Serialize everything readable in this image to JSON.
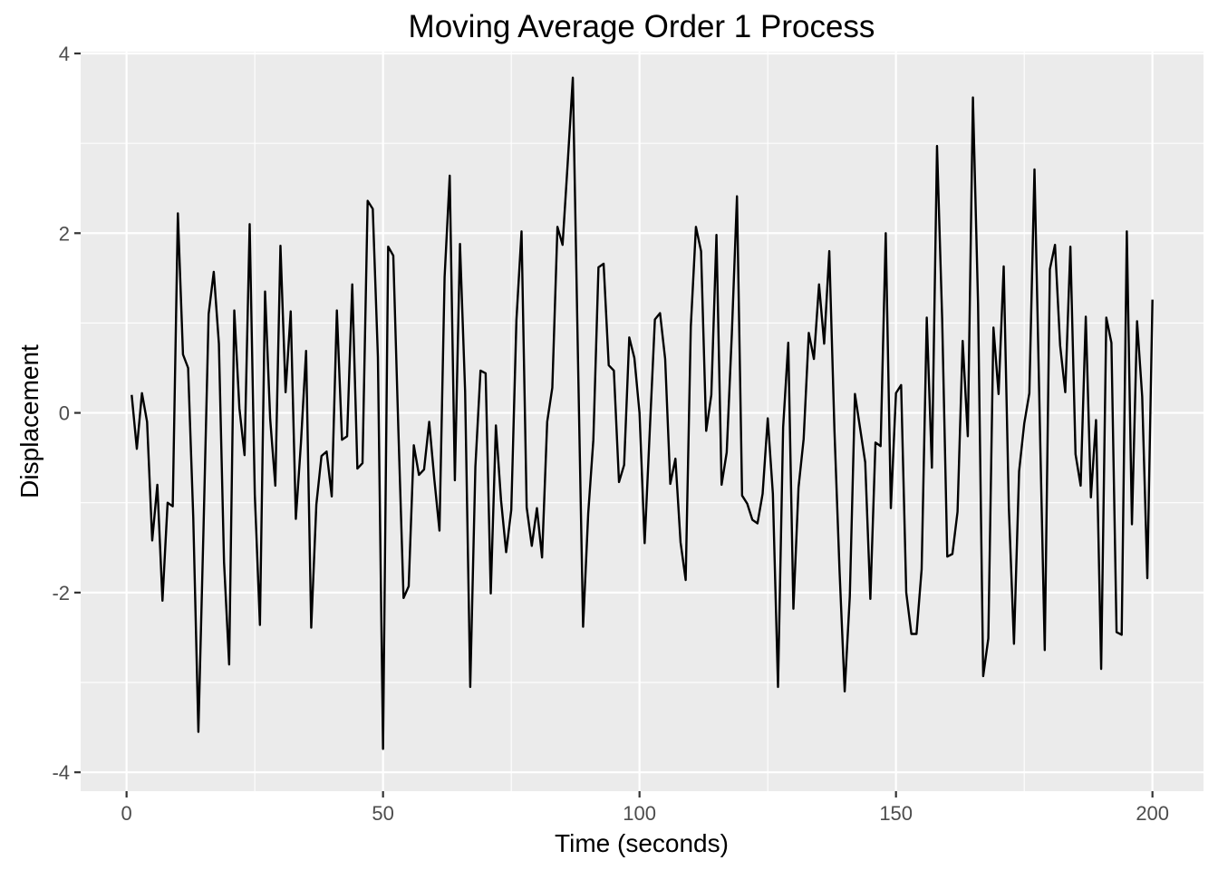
{
  "chart_data": {
    "type": "line",
    "title": "Moving Average Order 1 Process",
    "xlabel": "Time (seconds)",
    "ylabel": "Displacement",
    "xlim": [
      -8.95,
      209.95
    ],
    "ylim": [
      -4.21,
      4.02
    ],
    "x_ticks": [
      0,
      50,
      100,
      150,
      200
    ],
    "x_tick_labels": [
      "0",
      "50",
      "100",
      "150",
      "200"
    ],
    "y_ticks": [
      -4,
      -2,
      0,
      2,
      4
    ],
    "y_tick_labels": [
      "-4",
      "-2",
      "0",
      "2",
      "4"
    ],
    "grid": true,
    "panel_background": "#EBEBEB",
    "grid_color": "#FFFFFF",
    "line_color": "#000000",
    "series": [
      {
        "x": [
          1,
          2,
          3,
          4,
          5,
          6,
          7,
          8,
          9,
          10,
          11,
          12,
          13,
          14,
          15,
          16,
          17,
          18,
          19,
          20,
          21,
          22,
          23,
          24,
          25,
          26,
          27,
          28,
          29,
          30,
          31,
          32,
          33,
          34,
          35,
          36,
          37,
          38,
          39,
          40,
          41,
          42,
          43,
          44,
          45,
          46,
          47,
          48,
          49,
          50,
          51,
          52,
          53,
          54,
          55,
          56,
          57,
          58,
          59,
          60,
          61,
          62,
          63,
          64,
          65,
          66,
          67,
          68,
          69,
          70,
          71,
          72,
          73,
          74,
          75,
          76,
          77,
          78,
          79,
          80,
          81,
          82,
          83,
          84,
          85,
          86,
          87,
          88,
          89,
          90,
          91,
          92,
          93,
          94,
          95,
          96,
          97,
          98,
          99,
          100,
          101,
          102,
          103,
          104,
          105,
          106,
          107,
          108,
          109,
          110,
          111,
          112,
          113,
          114,
          115,
          116,
          117,
          118,
          119,
          120,
          121,
          122,
          123,
          124,
          125,
          126,
          127,
          128,
          129,
          130,
          131,
          132,
          133,
          134,
          135,
          136,
          137,
          138,
          139,
          140,
          141,
          142,
          143,
          144,
          145,
          146,
          147,
          148,
          149,
          150,
          151,
          152,
          153,
          154,
          155,
          156,
          157,
          158,
          159,
          160,
          161,
          162,
          163,
          164,
          165,
          166,
          167,
          168,
          169,
          170,
          171,
          172,
          173,
          174,
          175,
          176,
          177,
          178,
          179,
          180,
          181,
          182,
          183,
          184,
          185,
          186,
          187,
          188,
          189,
          190,
          191,
          192,
          193,
          194,
          195,
          196,
          197,
          198,
          199,
          200
        ],
        "values": [
          0.2,
          -0.4,
          0.22,
          -0.1,
          -1.42,
          -0.8,
          -2.09,
          -1.0,
          -1.04,
          2.22,
          0.65,
          0.5,
          -1.16,
          -3.55,
          -1.29,
          1.1,
          1.57,
          0.77,
          -1.66,
          -2.8,
          1.14,
          0.05,
          -0.47,
          2.1,
          -0.91,
          -2.36,
          1.35,
          -0.07,
          -0.81,
          1.86,
          0.23,
          1.13,
          -1.18,
          -0.33,
          0.69,
          -2.39,
          -1.02,
          -0.48,
          -0.43,
          -0.93,
          1.14,
          -0.3,
          -0.26,
          1.43,
          -0.62,
          -0.56,
          2.36,
          2.27,
          0.62,
          -3.74,
          1.85,
          1.75,
          -0.21,
          -2.06,
          -1.93,
          -0.36,
          -0.69,
          -0.63,
          -0.1,
          -0.74,
          -1.31,
          1.51,
          2.64,
          -0.75,
          1.88,
          0.24,
          -3.05,
          -0.6,
          0.47,
          0.44,
          -2.01,
          -0.14,
          -0.97,
          -1.55,
          -1.08,
          1.03,
          2.02,
          -1.05,
          -1.48,
          -1.06,
          -1.61,
          -0.1,
          0.28,
          2.07,
          1.87,
          2.78,
          3.73,
          0.62,
          -2.38,
          -1.12,
          -0.3,
          1.62,
          1.66,
          0.53,
          0.47,
          -0.77,
          -0.58,
          0.84,
          0.61,
          0.0,
          -1.45,
          -0.2,
          1.04,
          1.11,
          0.6,
          -0.79,
          -0.51,
          -1.44,
          -1.86,
          0.96,
          2.07,
          1.8,
          -0.2,
          0.2,
          1.98,
          -0.8,
          -0.44,
          0.88,
          2.41,
          -0.92,
          -1.01,
          -1.19,
          -1.23,
          -0.9,
          -0.06,
          -0.9,
          -3.05,
          -0.16,
          0.78,
          -2.18,
          -0.83,
          -0.29,
          0.89,
          0.6,
          1.43,
          0.77,
          1.8,
          -0.19,
          -1.76,
          -3.1,
          -2.04,
          0.21,
          -0.17,
          -0.55,
          -2.07,
          -0.33,
          -0.37,
          2.0,
          -1.06,
          0.22,
          0.31,
          -2.0,
          -2.46,
          -2.46,
          -1.74,
          1.06,
          -0.61,
          2.97,
          1.05,
          -1.6,
          -1.57,
          -1.1,
          0.8,
          -0.26,
          3.51,
          1.21,
          -2.93,
          -2.51,
          0.95,
          0.21,
          1.63,
          -1.05,
          -2.57,
          -0.65,
          -0.12,
          0.22,
          2.71,
          0.0,
          -2.64,
          1.6,
          1.87,
          0.75,
          0.23,
          1.85,
          -0.46,
          -0.81,
          1.07,
          -0.94,
          -0.08,
          -2.85,
          1.06,
          0.78,
          -2.44,
          -2.47,
          2.02,
          -1.24,
          1.02,
          0.18,
          -1.84,
          1.26
        ]
      }
    ]
  }
}
